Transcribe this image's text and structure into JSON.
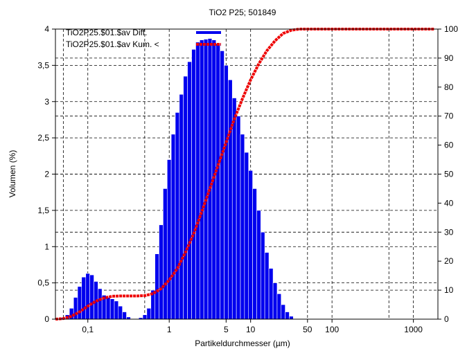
{
  "chart_data": {
    "type": "bar",
    "title": "TiO2 P25; 501849",
    "xlabel": "Partikeldurchmesser (µm)",
    "ylabel": "Volumen (%)",
    "x_scale": "log",
    "xlim": [
      0.04,
      2000
    ],
    "ylim": [
      0,
      4
    ],
    "y2lim": [
      0,
      100
    ],
    "grid": true,
    "legend_position": "top-left",
    "x_tick_labels": [
      {
        "value": 0.1,
        "label": "0,1"
      },
      {
        "value": 1,
        "label": "1"
      },
      {
        "value": 5,
        "label": "5"
      },
      {
        "value": 10,
        "label": "10"
      },
      {
        "value": 50,
        "label": "50"
      },
      {
        "value": 100,
        "label": "100"
      },
      {
        "value": 1000,
        "label": "1000"
      }
    ],
    "y_tick_labels": [
      {
        "value": 0,
        "label": "0"
      },
      {
        "value": 0.5,
        "label": "0,5"
      },
      {
        "value": 1,
        "label": "1"
      },
      {
        "value": 1.5,
        "label": "1,5"
      },
      {
        "value": 2,
        "label": "2"
      },
      {
        "value": 2.5,
        "label": "2,5"
      },
      {
        "value": 3,
        "label": "3"
      },
      {
        "value": 3.5,
        "label": "3,5"
      },
      {
        "value": 4,
        "label": "4"
      }
    ],
    "y2_tick_labels": [
      {
        "value": 0,
        "label": "0"
      },
      {
        "value": 10,
        "label": "10"
      },
      {
        "value": 20,
        "label": "20"
      },
      {
        "value": 30,
        "label": "30"
      },
      {
        "value": 40,
        "label": "40"
      },
      {
        "value": 50,
        "label": "50"
      },
      {
        "value": 60,
        "label": "60"
      },
      {
        "value": 70,
        "label": "70"
      },
      {
        "value": 80,
        "label": "80"
      },
      {
        "value": 90,
        "label": "90"
      },
      {
        "value": 100,
        "label": "100"
      }
    ],
    "series": [
      {
        "name": "TiO2P25.$01.$av Diff.",
        "kind": "histogram",
        "color": "#0000ee",
        "x": [
          0.05,
          0.056,
          0.063,
          0.071,
          0.079,
          0.089,
          0.1,
          0.112,
          0.126,
          0.141,
          0.158,
          0.178,
          0.2,
          0.224,
          0.251,
          0.282,
          0.316,
          0.355,
          0.398,
          0.447,
          0.501,
          0.562,
          0.631,
          0.708,
          0.794,
          0.891,
          1.0,
          1.12,
          1.26,
          1.41,
          1.58,
          1.78,
          2.0,
          2.24,
          2.51,
          2.82,
          3.16,
          3.55,
          3.98,
          4.47,
          5.01,
          5.62,
          6.31,
          7.08,
          7.94,
          8.91,
          10.0,
          11.2,
          12.6,
          14.1,
          15.8,
          17.8,
          20.0,
          22.4,
          25.1,
          28.2,
          31.6
        ],
        "values": [
          0.02,
          0.06,
          0.15,
          0.3,
          0.45,
          0.58,
          0.63,
          0.61,
          0.52,
          0.42,
          0.33,
          0.3,
          0.28,
          0.25,
          0.18,
          0.1,
          0.03,
          0.0,
          0.0,
          0.02,
          0.06,
          0.15,
          0.4,
          0.9,
          1.3,
          1.8,
          2.2,
          2.55,
          2.85,
          3.1,
          3.35,
          3.55,
          3.72,
          3.82,
          3.85,
          3.86,
          3.87,
          3.85,
          3.8,
          3.7,
          3.5,
          3.3,
          3.05,
          2.8,
          2.55,
          2.3,
          2.05,
          1.8,
          1.5,
          1.2,
          0.92,
          0.7,
          0.5,
          0.35,
          0.2,
          0.1,
          0.04
        ]
      },
      {
        "name": "TiO2P25.$01.$av Kum. <",
        "kind": "cumulative",
        "axis": "right",
        "color": "#ee0000",
        "x": [
          0.04,
          0.05,
          0.063,
          0.079,
          0.1,
          0.126,
          0.158,
          0.2,
          0.251,
          0.316,
          0.398,
          0.501,
          0.631,
          0.794,
          1.0,
          1.26,
          1.58,
          2.0,
          2.51,
          3.16,
          3.98,
          5.01,
          6.31,
          7.94,
          10.0,
          12.6,
          15.8,
          20.0,
          25.1,
          31.6,
          39.8,
          50,
          100,
          500,
          1000,
          1800
        ],
        "values": [
          0,
          0.2,
          1.0,
          2.5,
          4.5,
          6.2,
          7.3,
          7.9,
          8.0,
          8.0,
          8.0,
          8.1,
          8.8,
          10.5,
          13.5,
          17.5,
          23,
          29.5,
          37,
          45,
          53,
          61,
          69,
          76,
          82.5,
          88,
          92.5,
          96,
          98.5,
          99.6,
          100,
          100,
          100,
          100,
          100,
          100
        ]
      }
    ]
  }
}
